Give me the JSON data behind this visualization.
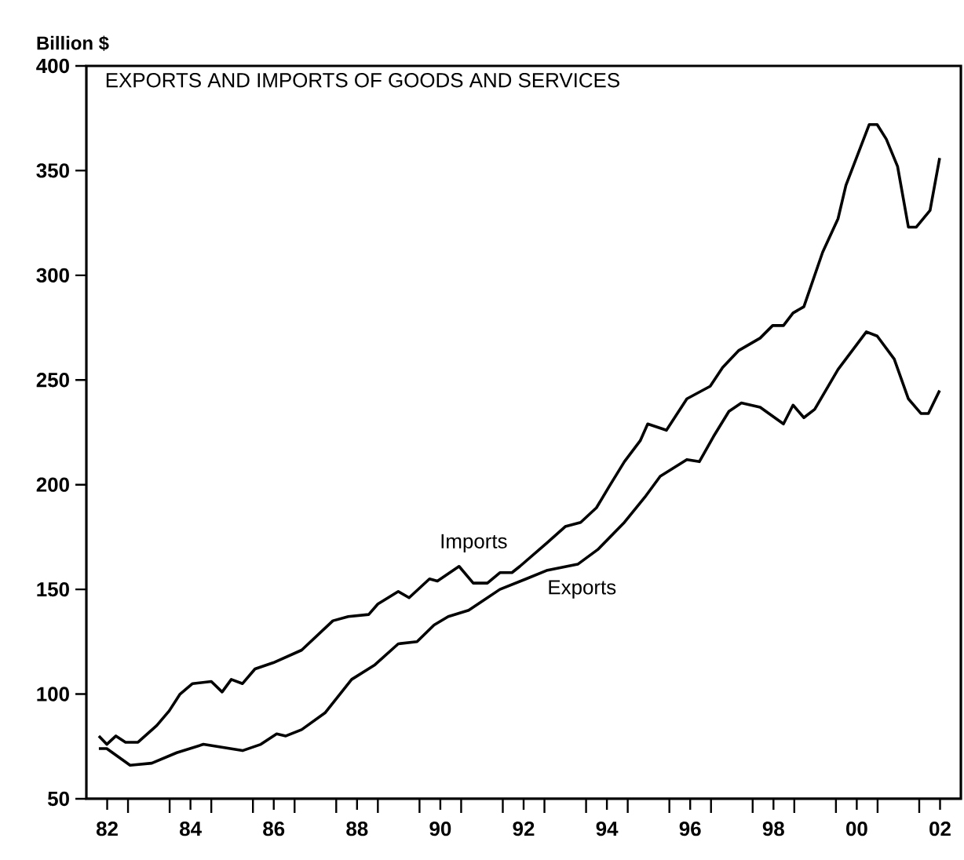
{
  "chart_data": {
    "type": "line",
    "title": "EXPORTS AND IMPORTS OF GOODS AND SERVICES",
    "ylabel": "Billion $",
    "xlim": [
      1981.5,
      2002.5
    ],
    "ylim": [
      50,
      400
    ],
    "yticks": [
      50,
      100,
      150,
      200,
      250,
      300,
      350,
      400
    ],
    "xticks": [
      {
        "value": 1982,
        "label": "82"
      },
      {
        "value": 1984,
        "label": "84"
      },
      {
        "value": 1986,
        "label": "86"
      },
      {
        "value": 1988,
        "label": "88"
      },
      {
        "value": 1990,
        "label": "90"
      },
      {
        "value": 1992,
        "label": "92"
      },
      {
        "value": 1994,
        "label": "94"
      },
      {
        "value": 1996,
        "label": "96"
      },
      {
        "value": 1998,
        "label": "98"
      },
      {
        "value": 2000,
        "label": "00"
      },
      {
        "value": 2002,
        "label": "02"
      },
      {
        "value": 1982.5,
        "label": null
      },
      {
        "value": 1983.5,
        "label": null
      },
      {
        "value": 1984.5,
        "label": null
      },
      {
        "value": 1985.5,
        "label": null
      },
      {
        "value": 1986.5,
        "label": null
      },
      {
        "value": 1987.5,
        "label": null
      },
      {
        "value": 1988.5,
        "label": null
      },
      {
        "value": 1989.5,
        "label": null
      },
      {
        "value": 1990.5,
        "label": null
      },
      {
        "value": 1991.5,
        "label": null
      },
      {
        "value": 1992.5,
        "label": null
      },
      {
        "value": 1993.5,
        "label": null
      },
      {
        "value": 1994.5,
        "label": null
      },
      {
        "value": 1995.5,
        "label": null
      },
      {
        "value": 1996.5,
        "label": null
      },
      {
        "value": 1997.5,
        "label": null
      },
      {
        "value": 1998.5,
        "label": null
      },
      {
        "value": 1999.5,
        "label": null
      },
      {
        "value": 2000.5,
        "label": null
      },
      {
        "value": 2001.5,
        "label": null
      }
    ],
    "series": [
      {
        "name": "Imports",
        "color": "#000000",
        "x": [
          1981.8,
          1981.99,
          1982.21,
          1982.44,
          1982.74,
          1983.19,
          1983.49,
          1983.75,
          1984.05,
          1984.5,
          1984.76,
          1984.98,
          1985.25,
          1985.55,
          1985.99,
          1986.67,
          1987.42,
          1987.79,
          1988.28,
          1988.5,
          1988.99,
          1989.25,
          1989.74,
          1989.93,
          1990.45,
          1990.79,
          1991.13,
          1991.43,
          1991.72,
          1991.91,
          1992.55,
          1993.0,
          1993.37,
          1993.75,
          1994.05,
          1994.42,
          1994.8,
          1994.98,
          1995.43,
          1995.92,
          1996.48,
          1996.78,
          1997.16,
          1997.68,
          1997.98,
          1998.24,
          1998.47,
          1998.73,
          1999.18,
          1999.55,
          1999.74,
          2000.3,
          2000.49,
          2000.71,
          2000.98,
          2001.24,
          2001.43,
          2001.76,
          2001.99
        ],
        "values": [
          80,
          76,
          80,
          77,
          77,
          85,
          92,
          100,
          105,
          106,
          101,
          107,
          105,
          112,
          115,
          121,
          135,
          137,
          138,
          143,
          149,
          146,
          155,
          154,
          161,
          153,
          153,
          158,
          158,
          161,
          172,
          180,
          182,
          189,
          199,
          211,
          221,
          229,
          226,
          241,
          247,
          256,
          264,
          270,
          276,
          276,
          282,
          285,
          311,
          327,
          343,
          372,
          372,
          365,
          352,
          323,
          323,
          331,
          356
        ]
      },
      {
        "name": "Exports",
        "color": "#000000",
        "x": [
          1981.8,
          1981.99,
          1982.55,
          1983.07,
          1983.67,
          1984.31,
          1985.25,
          1985.69,
          1986.07,
          1986.29,
          1986.67,
          1987.23,
          1987.87,
          1988.43,
          1988.99,
          1989.44,
          1989.85,
          1990.19,
          1990.68,
          1991.43,
          1992.06,
          1992.55,
          1993.3,
          1993.78,
          1994.42,
          1994.91,
          1995.28,
          1995.92,
          1996.22,
          1996.56,
          1996.93,
          1997.23,
          1997.68,
          1998.24,
          1998.47,
          1998.73,
          1998.99,
          1999.55,
          2000.23,
          2000.49,
          2000.9,
          2001.24,
          2001.54,
          2001.72,
          2001.99
        ],
        "values": [
          74,
          74,
          66,
          67,
          72,
          76,
          73,
          76,
          81,
          80,
          83,
          91,
          107,
          114,
          124,
          125,
          133,
          137,
          140,
          150,
          155,
          159,
          162,
          169,
          182,
          194,
          204,
          212,
          211,
          223,
          235,
          239,
          237,
          229,
          238,
          232,
          236,
          255,
          273,
          271,
          260,
          241,
          234,
          234,
          245
        ]
      }
    ]
  }
}
